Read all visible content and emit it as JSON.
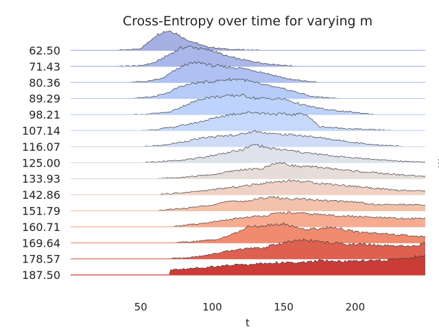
{
  "chart_data": {
    "type": "area",
    "subtype": "ridgeline",
    "title": "Cross-Entropy over time for varying m",
    "xlabel": "t",
    "ylabel": "m",
    "xlim": [
      1,
      249
    ],
    "xticks": [
      50,
      100,
      150,
      200
    ],
    "grid": false,
    "legend": "none",
    "colormap": "coolwarm",
    "categories": [
      "62.50",
      "71.43",
      "80.36",
      "89.29",
      "98.21",
      "107.14",
      "116.07",
      "125.00",
      "133.93",
      "142.86",
      "151.79",
      "160.71",
      "169.64",
      "178.57",
      "187.50"
    ],
    "series": [
      {
        "label": "62.50",
        "color": "#a6b0e2",
        "x": [
          28,
          40,
          50,
          55,
          60,
          65,
          70,
          75,
          80,
          88,
          95,
          105,
          115,
          140
        ],
        "y": [
          0.0,
          0.02,
          0.1,
          0.38,
          0.72,
          0.92,
          1.0,
          0.86,
          0.62,
          0.38,
          0.2,
          0.1,
          0.04,
          0.0
        ]
      },
      {
        "label": "71.43",
        "color": "#a9b7ea",
        "x": [
          30,
          50,
          60,
          68,
          78,
          85,
          92,
          100,
          110,
          120,
          140,
          160
        ],
        "y": [
          0.0,
          0.04,
          0.2,
          0.52,
          0.92,
          1.0,
          0.88,
          0.8,
          0.52,
          0.35,
          0.12,
          0.0
        ]
      },
      {
        "label": "80.36",
        "color": "#afc1f2",
        "x": [
          40,
          55,
          65,
          72,
          82,
          92,
          100,
          110,
          120,
          130,
          140,
          155,
          175
        ],
        "y": [
          0.0,
          0.06,
          0.2,
          0.52,
          0.92,
          1.0,
          0.84,
          0.78,
          0.72,
          0.6,
          0.42,
          0.15,
          0.0
        ]
      },
      {
        "label": "89.29",
        "color": "#b6cbf7",
        "x": [
          40,
          58,
          68,
          78,
          88,
          100,
          110,
          120,
          130,
          145,
          155,
          170,
          190
        ],
        "y": [
          0.0,
          0.08,
          0.25,
          0.62,
          0.78,
          0.85,
          0.95,
          0.98,
          0.78,
          0.55,
          0.4,
          0.1,
          0.0
        ]
      },
      {
        "label": "98.21",
        "color": "#bdd3fb",
        "x": [
          40,
          55,
          70,
          82,
          95,
          110,
          120,
          130,
          150,
          165,
          180,
          200,
          215
        ],
        "y": [
          0.0,
          0.03,
          0.12,
          0.5,
          0.85,
          0.92,
          0.98,
          0.82,
          0.78,
          0.45,
          0.25,
          0.1,
          0.0
        ]
      },
      {
        "label": "107.14",
        "color": "#c6d9fc",
        "x": [
          50,
          60,
          75,
          90,
          100,
          110,
          120,
          130,
          140,
          155,
          165,
          175,
          190,
          210,
          230
        ],
        "y": [
          0.0,
          0.05,
          0.2,
          0.42,
          0.6,
          0.78,
          0.88,
          0.92,
          0.85,
          0.8,
          0.85,
          0.2,
          0.12,
          0.05,
          0.0
        ]
      },
      {
        "label": "116.07",
        "color": "#d0dcf7",
        "x": [
          50,
          65,
          80,
          95,
          110,
          120,
          130,
          145,
          160,
          175,
          190,
          210,
          235
        ],
        "y": [
          0.0,
          0.06,
          0.25,
          0.45,
          0.55,
          0.62,
          0.78,
          0.62,
          0.58,
          0.45,
          0.3,
          0.12,
          0.0
        ]
      },
      {
        "label": "125.00",
        "color": "#dde2ed",
        "x": [
          50,
          70,
          90,
          110,
          120,
          130,
          140,
          155,
          170,
          190,
          210,
          230,
          249
        ],
        "y": [
          0.0,
          0.08,
          0.22,
          0.5,
          0.62,
          0.92,
          0.72,
          0.6,
          0.45,
          0.3,
          0.18,
          0.08,
          0.03
        ]
      },
      {
        "label": "133.93",
        "color": "#e7dcd7",
        "x": [
          60,
          80,
          100,
          120,
          135,
          145,
          160,
          175,
          190,
          210,
          230,
          249
        ],
        "y": [
          0.0,
          0.08,
          0.2,
          0.45,
          0.5,
          0.82,
          0.62,
          0.58,
          0.45,
          0.32,
          0.2,
          0.12
        ]
      },
      {
        "label": "142.86",
        "color": "#efd2c5",
        "x": [
          60,
          80,
          100,
          120,
          140,
          155,
          170,
          185,
          200,
          215,
          230,
          249
        ],
        "y": [
          0.0,
          0.1,
          0.25,
          0.42,
          0.62,
          0.72,
          0.62,
          0.52,
          0.42,
          0.32,
          0.22,
          0.18
        ]
      },
      {
        "label": "151.79",
        "color": "#f4c1ab",
        "x": [
          60,
          80,
          95,
          110,
          125,
          140,
          150,
          165,
          180,
          200,
          215,
          230,
          249
        ],
        "y": [
          0.0,
          0.12,
          0.25,
          0.45,
          0.5,
          0.7,
          0.62,
          0.58,
          0.5,
          0.45,
          0.3,
          0.32,
          0.28
        ]
      },
      {
        "label": "160.71",
        "color": "#f7ac92",
        "x": [
          70,
          90,
          105,
          120,
          135,
          150,
          160,
          175,
          190,
          205,
          220,
          235,
          249
        ],
        "y": [
          0.0,
          0.15,
          0.28,
          0.45,
          0.55,
          0.72,
          0.68,
          0.62,
          0.55,
          0.5,
          0.45,
          0.4,
          0.45
        ]
      },
      {
        "label": "169.64",
        "color": "#f18b6f",
        "x": [
          70,
          90,
          105,
          115,
          125,
          135,
          150,
          165,
          175,
          185,
          200,
          215,
          230,
          249
        ],
        "y": [
          0.0,
          0.08,
          0.2,
          0.45,
          0.8,
          0.85,
          0.95,
          0.68,
          0.72,
          0.8,
          0.55,
          0.5,
          0.4,
          0.3
        ]
      },
      {
        "label": "178.57",
        "color": "#de6051",
        "x": [
          70,
          90,
          105,
          120,
          135,
          150,
          165,
          180,
          195,
          210,
          225,
          240,
          249
        ],
        "y": [
          0.0,
          0.12,
          0.3,
          0.5,
          0.55,
          0.82,
          0.95,
          0.82,
          0.75,
          0.72,
          0.65,
          0.62,
          0.8
        ]
      },
      {
        "label": "187.50",
        "color": "#cc3c37",
        "x": [
          70,
          71,
          85,
          100,
          115,
          130,
          145,
          160,
          175,
          190,
          205,
          220,
          235,
          249
        ],
        "y": [
          0.0,
          0.25,
          0.32,
          0.42,
          0.5,
          0.55,
          0.62,
          0.6,
          0.72,
          0.68,
          0.7,
          0.72,
          0.85,
          0.95
        ]
      }
    ]
  }
}
